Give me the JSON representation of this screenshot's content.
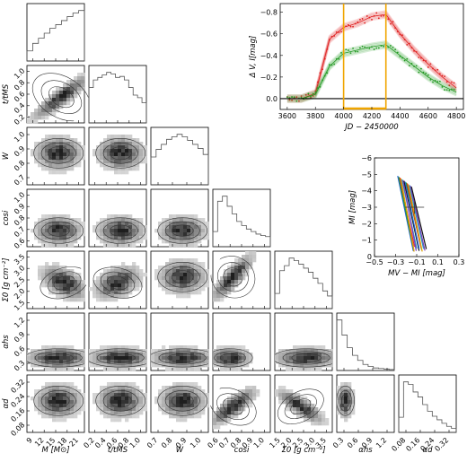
{
  "chart_data": [
    {
      "type": "corner",
      "parameters": [
        {
          "label": "M [M⊙]",
          "ylabel": "",
          "range": [
            9,
            22
          ],
          "ticks": [
            "9",
            "12",
            "15",
            "18",
            "21"
          ]
        },
        {
          "label": "t/tMS",
          "ylabel": "t/tMS",
          "range": [
            0.1,
            1.05
          ],
          "ticks": [
            "0.2",
            "0.4",
            "0.6",
            "0.8",
            "1.0"
          ]
        },
        {
          "label": "W",
          "ylabel": "W",
          "range": [
            0.63,
            1.02
          ],
          "ticks": [
            "0.7",
            "0.8",
            "0.9",
            "1.0"
          ]
        },
        {
          "label": "cosi",
          "ylabel": "cosi",
          "range": [
            0.52,
            1.02
          ],
          "ticks": [
            "0.6",
            "0.7",
            "0.8",
            "0.9",
            "1.0"
          ]
        },
        {
          "label": "Σ0 [g cm⁻²]",
          "ylabel": "Σ0 [g cm⁻²]",
          "range": [
            1.2,
            3.6
          ],
          "ticks": [
            "1.5",
            "2.0",
            "2.5",
            "3.0",
            "3.5"
          ]
        },
        {
          "label": "αhs",
          "ylabel": "αhs",
          "range": [
            0.15,
            1.45
          ],
          "ticks": [
            "0.3",
            "0.6",
            "0.9",
            "1.2"
          ]
        },
        {
          "label": "αd",
          "ylabel": "αd",
          "range": [
            0.03,
            0.33
          ],
          "ticks": [
            "0.08",
            "0.16",
            "0.24",
            "0.32"
          ]
        }
      ],
      "diagonal_hist": [
        [
          0.2,
          0.35,
          0.45,
          0.55,
          0.65,
          0.72,
          0.8,
          0.88,
          0.95,
          1.0
        ],
        [
          0.7,
          0.85,
          0.9,
          0.95,
          1.0,
          0.97,
          0.9,
          0.92,
          0.85,
          0.7,
          0.55,
          0.5,
          0.4
        ],
        [
          0.55,
          0.7,
          0.8,
          0.9,
          0.95,
          1.0,
          0.95,
          0.88,
          0.8,
          0.72,
          0.6
        ],
        [
          0.3,
          0.9,
          1.0,
          0.8,
          0.65,
          0.5,
          0.42,
          0.35,
          0.3,
          0.25,
          0.22,
          0.2
        ],
        [
          0.3,
          0.75,
          0.85,
          1.0,
          0.95,
          0.88,
          0.8,
          0.72,
          0.6,
          0.5,
          0.35,
          0.25
        ],
        [
          1.0,
          0.7,
          0.45,
          0.3,
          0.2,
          0.12,
          0.08,
          0.05,
          0.04,
          0.03,
          0.02
        ],
        [
          0.3,
          1.0,
          0.95,
          0.8,
          0.7,
          0.55,
          0.42,
          0.32,
          0.25,
          0.18,
          0.12,
          0.08
        ]
      ]
    },
    {
      "type": "line",
      "x": [
        3600,
        3700,
        3800,
        3900,
        4000,
        4100,
        4200,
        4300,
        4400,
        4500,
        4600,
        4700,
        4800
      ],
      "xlim": [
        3550,
        4850
      ],
      "ylim": [
        0.1,
        -0.88
      ],
      "xlabel": "JD − 2450000",
      "ylabel": "Δ V, I[mag]",
      "xticks": [
        "3600",
        "3800",
        "4000",
        "4200",
        "4400",
        "4600",
        "4800"
      ],
      "yticks": [
        "0.0",
        "−0.2",
        "−0.4",
        "−0.6",
        "−0.8"
      ],
      "series": [
        {
          "color": "#e02020",
          "values": [
            0.0,
            0.0,
            -0.05,
            -0.55,
            -0.66,
            -0.7,
            -0.76,
            -0.78,
            -0.6,
            -0.45,
            -0.32,
            -0.2,
            -0.1
          ]
        },
        {
          "color": "#229922",
          "values": [
            0.0,
            0.0,
            -0.04,
            -0.3,
            -0.42,
            -0.45,
            -0.48,
            -0.5,
            -0.4,
            -0.3,
            -0.2,
            -0.12,
            -0.06
          ]
        }
      ],
      "vlines": [
        4000,
        4300
      ],
      "hbar": [
        4000,
        4300
      ],
      "accent": "#f0a500"
    },
    {
      "type": "scatter",
      "xlim": [
        -0.5,
        0.3
      ],
      "ylim": [
        0,
        -6
      ],
      "xlabel": "MV − MI [mag]",
      "ylabel": "MI [mag]",
      "xticks": [
        "−0.5",
        "−0.3",
        "−0.1",
        "0.1",
        "0.3"
      ],
      "yticks": [
        "0",
        "−1",
        "−2",
        "−3",
        "−4",
        "−5",
        "−6"
      ]
    }
  ]
}
